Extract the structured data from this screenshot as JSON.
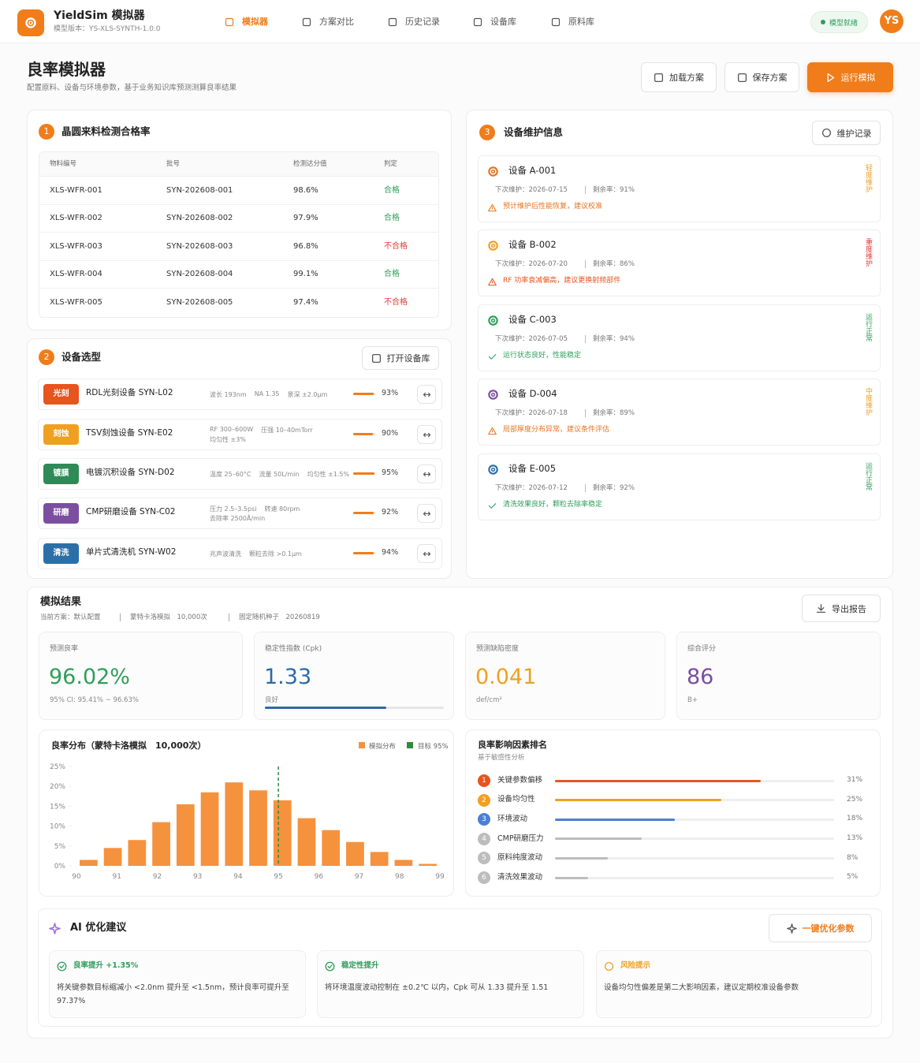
{
  "header": {
    "app_title": "YieldSim 模拟器",
    "version": "模型版本：YS-XLS-SYNTH-1.0.0",
    "nav": [
      "模拟器",
      "方案对比",
      "历史记录",
      "设备库",
      "原料库"
    ],
    "nav_active_index": 0,
    "status": "模型就绪",
    "avatar": "YS"
  },
  "page": {
    "title": "良率模拟器",
    "subtitle": "配置原料、设备与环境参数，基于业务知识库预测测算良率结果",
    "buttons": [
      "加载方案",
      "保存方案",
      "运行模拟"
    ]
  },
  "inspection": {
    "number": 1,
    "title": "晶圆来料检测合格率",
    "columns": [
      "物料编号",
      "批号",
      "检测达分值",
      "判定"
    ],
    "rows": [
      [
        "XLS-WFR-001",
        "SYN-202608-001",
        "98.6%",
        "合格"
      ],
      [
        "XLS-WFR-002",
        "SYN-202608-002",
        "97.9%",
        "合格"
      ],
      [
        "XLS-WFR-003",
        "SYN-202608-003",
        "96.8%",
        "不合格"
      ],
      [
        "XLS-WFR-004",
        "SYN-202608-004",
        "99.1%",
        "合格"
      ],
      [
        "XLS-WFR-005",
        "SYN-202608-005",
        "97.4%",
        "不合格"
      ]
    ],
    "verdict_colors": [
      "#2e9d5a",
      "#2e9d5a",
      "#e53935",
      "#2e9d5a",
      "#e53935"
    ]
  },
  "equipment": {
    "number": 2,
    "title": "设备选型",
    "button": "打开设备库",
    "items": [
      {
        "tag": "光刻",
        "tag_color": "#e8541e",
        "name": "RDL光刻设备 SYN-L02",
        "params": [
          "波长 193nm",
          "NA 1.35",
          "景深 ±2.0μm"
        ],
        "value": 93,
        "value_label": "93%"
      },
      {
        "tag": "刻蚀",
        "tag_color": "#f0a020",
        "name": "TSV刻蚀设备 SYN-E02",
        "params": [
          "RF 300–600W",
          "压强 10–40mTorr",
          "均匀性 ±3%"
        ],
        "value": 90,
        "value_label": "90%"
      },
      {
        "tag": "镀膜",
        "tag_color": "#2e8b57",
        "name": "电镀沉积设备 SYN-D02",
        "params": [
          "温度 25–60°C",
          "流量 50L/min",
          "均匀性 ±1.5%"
        ],
        "value": 95,
        "value_label": "95%"
      },
      {
        "tag": "研磨",
        "tag_color": "#7b4ea0",
        "name": "CMP研磨设备 SYN-C02",
        "params": [
          "压力 2.5–3.5psi",
          "转速 80rpm",
          "去除率 2500Å/min"
        ],
        "value": 92,
        "value_label": "92%"
      },
      {
        "tag": "清洗",
        "tag_color": "#2c6fa8",
        "name": "单片式清洗机 SYN-W02",
        "params": [
          "兆声波清洗",
          "颗粒去除 >0.1μm"
        ],
        "value": 94,
        "value_label": "94%"
      }
    ]
  },
  "maintenance": {
    "number": 3,
    "title": "设备维护信息",
    "button": "维护记录",
    "devices": [
      {
        "name": "设备 A-001",
        "next": "下次维护：2026-07-15",
        "remain": "剩余率：91%",
        "note": "预计维护后性能恢复，建议校准",
        "status": "轻度维护",
        "icon_color": "#e8741e",
        "note_color": "#e8741e",
        "status_color": "#f0a020"
      },
      {
        "name": "设备 B-002",
        "next": "下次维护：2026-07-20",
        "remain": "剩余率：86%",
        "note": "RF 功率衰减偏高，建议更换射频部件",
        "status": "重度维护",
        "icon_color": "#f0a020",
        "note_color": "#e8541e",
        "status_color": "#e53935"
      },
      {
        "name": "设备 C-003",
        "next": "下次维护：2026-07-05",
        "remain": "剩余率：94%",
        "note": "运行状态良好，性能稳定",
        "status": "运行正常",
        "icon_color": "#2e9d5a",
        "note_color": "#2e9d5a",
        "status_color": "#2e9d5a"
      },
      {
        "name": "设备 D-004",
        "next": "下次维护：2026-07-18",
        "remain": "剩余率：89%",
        "note": "局部厚度分布异常，建议条件评估",
        "status": "中度维护",
        "icon_color": "#7b4ea0",
        "note_color": "#e8741e",
        "status_color": "#f0a020"
      },
      {
        "name": "设备 E-005",
        "next": "下次维护：2026-07-12",
        "remain": "剩余率：92%",
        "note": "清洗效果良好，颗粒去除率稳定",
        "status": "运行正常",
        "icon_color": "#2c6fa8",
        "note_color": "#2e9d5a",
        "status_color": "#2e9d5a"
      }
    ]
  },
  "results": {
    "title": "模拟结果",
    "meta": [
      "当前方案：默认配置",
      "蒙特卡洛模拟　10,000次",
      "固定随机种子　20260819"
    ],
    "button": "导出报告",
    "cards": [
      {
        "label": "预测良率",
        "value": "96.02%",
        "note": "95% CI: 95.41% ~ 96.63%",
        "color": "#2f9e58"
      },
      {
        "label": "稳定性指数 (Cpk)",
        "value": "1.33",
        "note": "良好",
        "color": "#2d6aa6"
      },
      {
        "label": "预测缺陷密度",
        "value": "0.041",
        "note": "def/cm²",
        "color": "#f0a020"
      },
      {
        "label": "综合评分",
        "value": "86",
        "note": "B+",
        "color": "#7b4ea0"
      }
    ]
  },
  "chart_data": {
    "type": "histogram",
    "title": "良率分布（蒙特卡洛模拟　10,000次）",
    "bins": [
      90,
      90.6,
      91.2,
      91.8,
      92.4,
      93,
      93.6,
      94.2,
      94.8,
      95.4,
      96,
      96.6,
      97.2,
      97.8,
      98.4,
      99
    ],
    "series": [
      {
        "name": "模拟分布",
        "color": "#f5923e",
        "values": [
          1.5,
          4.5,
          6.5,
          11,
          15.5,
          18.5,
          21,
          19,
          16.5,
          12,
          9,
          6,
          3.5,
          1.5,
          0.5
        ]
      }
    ],
    "target": {
      "name": "目标 95%",
      "value": 95,
      "color": "#2e8b3e"
    },
    "xlim": [
      90,
      99
    ],
    "xticks": [
      90,
      91,
      92,
      93,
      94,
      95,
      96,
      97,
      98,
      99
    ],
    "ylim": [
      0,
      25
    ],
    "yticks": [
      {
        "value": 0,
        "label": "0%"
      },
      {
        "value": 5,
        "label": "5%"
      },
      {
        "value": 10,
        "label": "10%"
      },
      {
        "value": 15,
        "label": "15%"
      },
      {
        "value": 20,
        "label": "20%"
      },
      {
        "value": 25,
        "label": "25%"
      }
    ]
  },
  "factors": {
    "title": "良率影响因素排名",
    "subtitle": "基于敏感性分析",
    "xlim": [
      0,
      42
    ],
    "items": [
      {
        "rank": 1,
        "name": "关键参数偏移",
        "value": 31,
        "value_label": "31%",
        "color": "#e8541e"
      },
      {
        "rank": 2,
        "name": "设备均匀性",
        "value": 25,
        "value_label": "25%",
        "color": "#f0a020"
      },
      {
        "rank": 3,
        "name": "环境波动",
        "value": 18,
        "value_label": "18%",
        "color": "#4a7fd6"
      },
      {
        "rank": 4,
        "name": "CMP研磨压力",
        "value": 13,
        "value_label": "13%",
        "color": "#bdbdbd"
      },
      {
        "rank": 5,
        "name": "原料纯度波动",
        "value": 8,
        "value_label": "8%",
        "color": "#bdbdbd"
      },
      {
        "rank": 6,
        "name": "清洗效果波动",
        "value": 5,
        "value_label": "5%",
        "color": "#bdbdbd"
      }
    ]
  },
  "ai": {
    "title": "AI 优化建议",
    "button": "一键优化参数",
    "cards": [
      {
        "title": "良率提升 +1.35%",
        "body": "将关键参数目标缩减小 <2.0nm 提升至 <1.5nm，预计良率可提升至 97.37%",
        "color": "#2e9d5a"
      },
      {
        "title": "稳定性提升",
        "body": "将环境温度波动控制在 ±0.2℃ 以内，Cpk 可从 1.33 提升至 1.51",
        "color": "#2e9d5a"
      },
      {
        "title": "风险提示",
        "body": "设备均匀性偏差是第二大影响因素，建议定期校准设备参数",
        "color": "#f0a020"
      }
    ]
  }
}
